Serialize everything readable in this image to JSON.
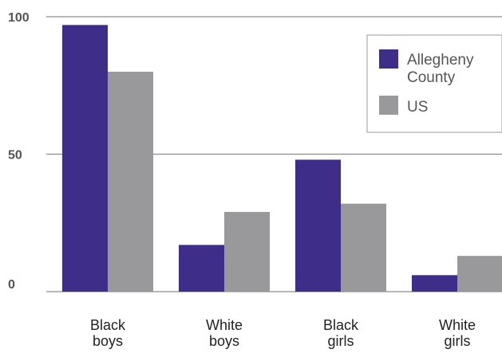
{
  "chart_data": {
    "type": "bar",
    "categories": [
      [
        "Black",
        "boys"
      ],
      [
        "White",
        "boys"
      ],
      [
        "Black",
        "girls"
      ],
      [
        "White",
        "girls"
      ]
    ],
    "series": [
      {
        "name": "Allegheny County",
        "name_lines": [
          "Allegheny",
          "County"
        ],
        "values": [
          97,
          17,
          48,
          6
        ],
        "color": "#3f2d8a"
      },
      {
        "name": "US",
        "name_lines": [
          "US"
        ],
        "values": [
          80,
          29,
          32,
          13
        ],
        "color": "#99999b"
      }
    ],
    "yticks": [
      "0",
      "50",
      "100"
    ],
    "ylim": [
      0,
      100
    ],
    "title": "",
    "xlabel": "",
    "ylabel": "",
    "grid": false,
    "legend_position": "top-right"
  }
}
